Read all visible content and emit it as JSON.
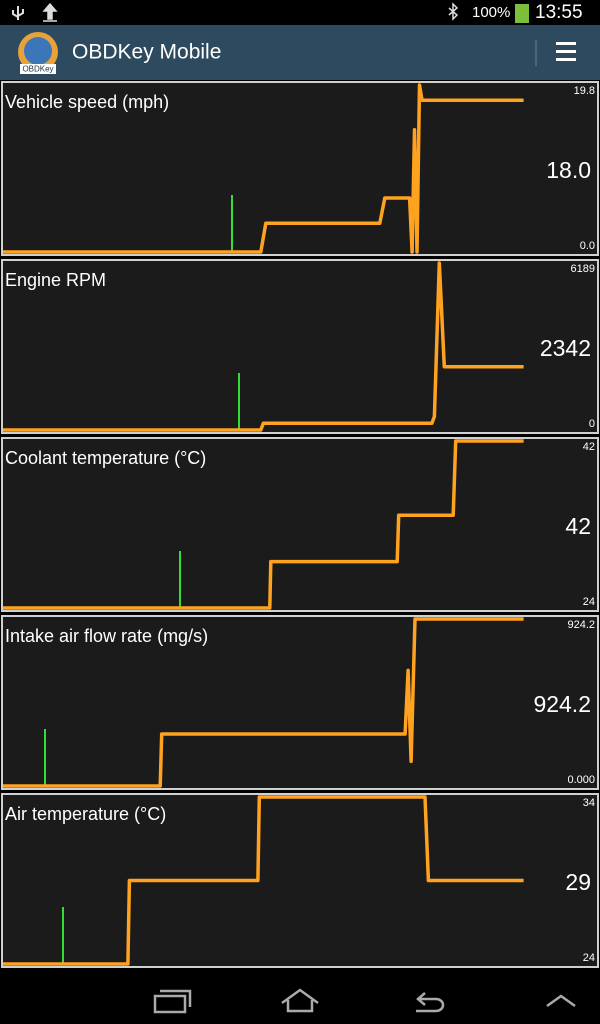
{
  "status_bar": {
    "battery": "100%",
    "time": "13:55"
  },
  "app_bar": {
    "logo_text": "OBDKey",
    "title": "OBDKey Mobile"
  },
  "chart_data": [
    {
      "type": "line",
      "title": "Vehicle speed (mph)",
      "color": "#ffa21f",
      "xlim": [
        0,
        120
      ],
      "ylim": [
        0,
        19.8
      ],
      "yticks": [
        {
          "value": 0,
          "label": "0.0"
        },
        19.8
      ],
      "current": {
        "value": 18,
        "label": "18.0"
      },
      "x": [
        0,
        52,
        53,
        76,
        77,
        82,
        82.5,
        83,
        83.5,
        84,
        84.5,
        85,
        105
      ],
      "values": [
        0,
        0,
        3.4,
        3.4,
        6.4,
        6.4,
        0,
        14.5,
        0,
        19.8,
        18,
        18,
        18
      ]
    },
    {
      "type": "line",
      "title": "Engine RPM",
      "color": "#ffa21f",
      "xlim": [
        0,
        120
      ],
      "ylim": [
        0,
        6189
      ],
      "yticks": [
        0,
        6189
      ],
      "current": 2342,
      "x": [
        0,
        52,
        52.5,
        86.5,
        87,
        88,
        89,
        105
      ],
      "values": [
        0,
        0,
        250,
        250,
        500,
        6189,
        2342,
        2342
      ]
    },
    {
      "type": "line",
      "title": "Coolant temperature (°C)",
      "color": "#ffa21f",
      "xlim": [
        0,
        120
      ],
      "ylim": [
        24,
        42
      ],
      "yticks": [
        24,
        42
      ],
      "current": 42,
      "x": [
        0,
        53.8,
        54,
        79.5,
        79.8,
        90.8,
        91.3,
        105
      ],
      "values": [
        24,
        24,
        29,
        29,
        34,
        34,
        42,
        42
      ]
    },
    {
      "type": "line",
      "title": "Intake air flow rate (mg/s)",
      "color": "#ffa21f",
      "xlim": [
        0,
        120
      ],
      "ylim": [
        0,
        924.2
      ],
      "yticks": [
        {
          "value": 0,
          "label": "0.000"
        },
        924.2
      ],
      "current": 924.2,
      "x": [
        0,
        31.7,
        32,
        81.1,
        81.7,
        82.3,
        83.1,
        105
      ],
      "values": [
        0,
        0,
        288,
        288,
        640,
        136,
        924.2,
        924.2
      ]
    },
    {
      "type": "line",
      "title": "Air temperature (°C)",
      "color": "#ffa21f",
      "xlim": [
        0,
        120
      ],
      "ylim": [
        24,
        34
      ],
      "yticks": [
        24,
        34
      ],
      "current": 29,
      "x": [
        0,
        25.2,
        25.5,
        51.4,
        51.7,
        85.1,
        85.8,
        105
      ],
      "values": [
        24,
        24,
        29,
        29,
        34,
        34,
        29,
        29
      ]
    }
  ]
}
